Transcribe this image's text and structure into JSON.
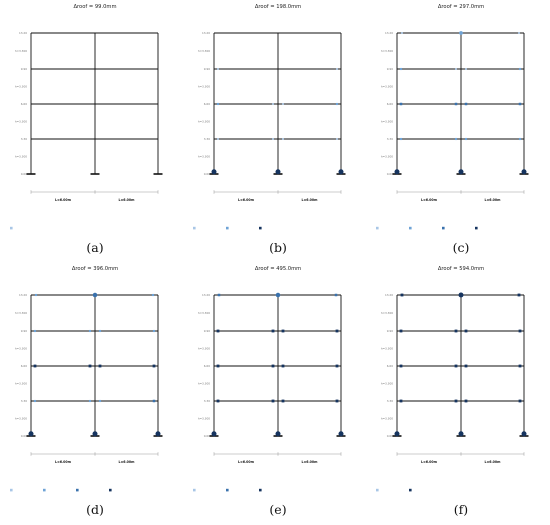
{
  "colors": {
    "frame": "#111111",
    "strain_0_02": "#a8c6e6",
    "strain_0_04": "#6fa3d6",
    "strain_0_06": "#3a72ad",
    "strain_0_08": "#16345f",
    "dim_line": "#999999"
  },
  "axis": {
    "floor_labels": [
      "0.00",
      "3.30",
      "6.60",
      "9.90",
      "13.20"
    ],
    "height_labels": [
      "h=3.300",
      "h=3.300",
      "h=3.300",
      "h=3.300"
    ]
  },
  "bays": [
    "L=6.00m",
    "L=6.00m"
  ],
  "legend_labels": {
    "0.02": "Strain = 0.02",
    "0.04": "Strain = 0.04",
    "0.06": "Strain = 0.06",
    "0.08": "Strain = 0.08"
  },
  "panels": [
    {
      "label": "(a)",
      "title": "Δroof = 99.0mm",
      "legend": [
        "0.02"
      ],
      "hinges": []
    },
    {
      "label": "(b)",
      "title": "Δroof = 198.0mm",
      "legend": [
        "0.02",
        "0.04",
        "0.08"
      ],
      "hinges": [
        {
          "f": 1,
          "pos": "L",
          "lvl": "0.02"
        },
        {
          "f": 1,
          "pos": "C1",
          "lvl": "0.02"
        },
        {
          "f": 1,
          "pos": "C2",
          "lvl": "0.02"
        },
        {
          "f": 1,
          "pos": "R",
          "lvl": "0.02"
        },
        {
          "f": 2,
          "pos": "L",
          "lvl": "0.04"
        },
        {
          "f": 2,
          "pos": "C1",
          "lvl": "0.02"
        },
        {
          "f": 2,
          "pos": "C2",
          "lvl": "0.02"
        },
        {
          "f": 2,
          "pos": "R",
          "lvl": "0.04"
        },
        {
          "f": 3,
          "pos": "L",
          "lvl": "0.02"
        },
        {
          "f": 3,
          "pos": "R",
          "lvl": "0.02"
        },
        {
          "f": 0,
          "pos": "L",
          "lvl": "0.08"
        },
        {
          "f": 0,
          "pos": "C",
          "lvl": "0.08"
        },
        {
          "f": 0,
          "pos": "R",
          "lvl": "0.08"
        }
      ]
    },
    {
      "label": "(c)",
      "title": "Δroof = 297.0mm",
      "legend": [
        "0.02",
        "0.04",
        "0.06",
        "0.08"
      ],
      "hinges": [
        {
          "f": 1,
          "pos": "L",
          "lvl": "0.04"
        },
        {
          "f": 1,
          "pos": "C1",
          "lvl": "0.04"
        },
        {
          "f": 1,
          "pos": "C2",
          "lvl": "0.04"
        },
        {
          "f": 1,
          "pos": "R",
          "lvl": "0.04"
        },
        {
          "f": 2,
          "pos": "L",
          "lvl": "0.06"
        },
        {
          "f": 2,
          "pos": "C1",
          "lvl": "0.06"
        },
        {
          "f": 2,
          "pos": "C2",
          "lvl": "0.06"
        },
        {
          "f": 2,
          "pos": "R",
          "lvl": "0.06"
        },
        {
          "f": 3,
          "pos": "L",
          "lvl": "0.04"
        },
        {
          "f": 3,
          "pos": "C1",
          "lvl": "0.02"
        },
        {
          "f": 3,
          "pos": "C2",
          "lvl": "0.02"
        },
        {
          "f": 3,
          "pos": "R",
          "lvl": "0.04"
        },
        {
          "f": 4,
          "pos": "L",
          "lvl": "0.02"
        },
        {
          "f": 4,
          "pos": "C",
          "lvl": "0.04"
        },
        {
          "f": 4,
          "pos": "R",
          "lvl": "0.02"
        },
        {
          "f": 0,
          "pos": "L",
          "lvl": "0.08"
        },
        {
          "f": 0,
          "pos": "C",
          "lvl": "0.08"
        },
        {
          "f": 0,
          "pos": "R",
          "lvl": "0.08"
        }
      ]
    },
    {
      "label": "(d)",
      "title": "Δroof = 396.0mm",
      "legend": [
        "0.02",
        "0.04",
        "0.06",
        "0.08"
      ],
      "hinges": [
        {
          "f": 1,
          "pos": "L",
          "lvl": "0.04"
        },
        {
          "f": 1,
          "pos": "C1",
          "lvl": "0.04"
        },
        {
          "f": 1,
          "pos": "C2",
          "lvl": "0.04"
        },
        {
          "f": 1,
          "pos": "R",
          "lvl": "0.06"
        },
        {
          "f": 2,
          "pos": "L",
          "lvl": "0.08"
        },
        {
          "f": 2,
          "pos": "C1",
          "lvl": "0.08"
        },
        {
          "f": 2,
          "pos": "C2",
          "lvl": "0.08"
        },
        {
          "f": 2,
          "pos": "R",
          "lvl": "0.08"
        },
        {
          "f": 3,
          "pos": "L",
          "lvl": "0.04"
        },
        {
          "f": 3,
          "pos": "C1",
          "lvl": "0.04"
        },
        {
          "f": 3,
          "pos": "C2",
          "lvl": "0.04"
        },
        {
          "f": 3,
          "pos": "R",
          "lvl": "0.04"
        },
        {
          "f": 4,
          "pos": "L",
          "lvl": "0.04"
        },
        {
          "f": 4,
          "pos": "C",
          "lvl": "0.06"
        },
        {
          "f": 4,
          "pos": "R",
          "lvl": "0.04"
        },
        {
          "f": 0,
          "pos": "L",
          "lvl": "0.08"
        },
        {
          "f": 0,
          "pos": "C",
          "lvl": "0.08"
        },
        {
          "f": 0,
          "pos": "R",
          "lvl": "0.08"
        }
      ]
    },
    {
      "label": "(e)",
      "title": "Δroof = 495.0mm",
      "legend": [
        "0.02",
        "0.06",
        "0.08"
      ],
      "hinges": [
        {
          "f": 1,
          "pos": "L",
          "lvl": "0.08"
        },
        {
          "f": 1,
          "pos": "C1",
          "lvl": "0.08"
        },
        {
          "f": 1,
          "pos": "C2",
          "lvl": "0.08"
        },
        {
          "f": 1,
          "pos": "R",
          "lvl": "0.08"
        },
        {
          "f": 2,
          "pos": "L",
          "lvl": "0.08"
        },
        {
          "f": 2,
          "pos": "C1",
          "lvl": "0.08"
        },
        {
          "f": 2,
          "pos": "C2",
          "lvl": "0.08"
        },
        {
          "f": 2,
          "pos": "R",
          "lvl": "0.08"
        },
        {
          "f": 3,
          "pos": "L",
          "lvl": "0.08"
        },
        {
          "f": 3,
          "pos": "C1",
          "lvl": "0.08"
        },
        {
          "f": 3,
          "pos": "C2",
          "lvl": "0.08"
        },
        {
          "f": 3,
          "pos": "R",
          "lvl": "0.08"
        },
        {
          "f": 4,
          "pos": "L",
          "lvl": "0.06"
        },
        {
          "f": 4,
          "pos": "C",
          "lvl": "0.06"
        },
        {
          "f": 4,
          "pos": "R",
          "lvl": "0.06"
        },
        {
          "f": 0,
          "pos": "L",
          "lvl": "0.08"
        },
        {
          "f": 0,
          "pos": "C",
          "lvl": "0.08"
        },
        {
          "f": 0,
          "pos": "R",
          "lvl": "0.08"
        }
      ]
    },
    {
      "label": "(f)",
      "title": "Δroof = 594.0mm",
      "legend": [
        "0.02",
        "0.08"
      ],
      "hinges": [
        {
          "f": 1,
          "pos": "L",
          "lvl": "0.08"
        },
        {
          "f": 1,
          "pos": "C1",
          "lvl": "0.08"
        },
        {
          "f": 1,
          "pos": "C2",
          "lvl": "0.08"
        },
        {
          "f": 1,
          "pos": "R",
          "lvl": "0.08"
        },
        {
          "f": 2,
          "pos": "L",
          "lvl": "0.08"
        },
        {
          "f": 2,
          "pos": "C1",
          "lvl": "0.08"
        },
        {
          "f": 2,
          "pos": "C2",
          "lvl": "0.08"
        },
        {
          "f": 2,
          "pos": "R",
          "lvl": "0.08"
        },
        {
          "f": 3,
          "pos": "L",
          "lvl": "0.08"
        },
        {
          "f": 3,
          "pos": "C1",
          "lvl": "0.08"
        },
        {
          "f": 3,
          "pos": "C2",
          "lvl": "0.08"
        },
        {
          "f": 3,
          "pos": "R",
          "lvl": "0.08"
        },
        {
          "f": 4,
          "pos": "L",
          "lvl": "0.08"
        },
        {
          "f": 4,
          "pos": "C",
          "lvl": "0.08"
        },
        {
          "f": 4,
          "pos": "R",
          "lvl": "0.08"
        },
        {
          "f": 0,
          "pos": "L",
          "lvl": "0.08"
        },
        {
          "f": 0,
          "pos": "C",
          "lvl": "0.08"
        },
        {
          "f": 0,
          "pos": "R",
          "lvl": "0.08"
        }
      ]
    }
  ]
}
